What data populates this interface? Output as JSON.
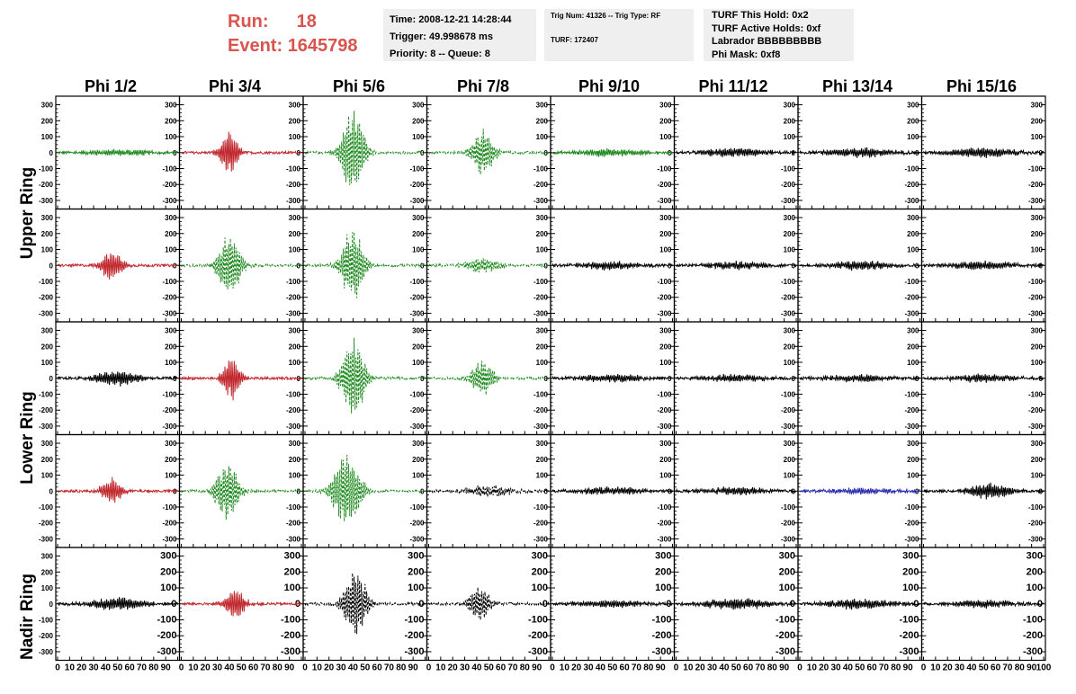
{
  "header": {
    "run_label": "Run:",
    "run_value": "18",
    "event_label": "Event:",
    "event_value": "1645798"
  },
  "info_boxes": {
    "time": "Time: 2008-12-21 14:28:44",
    "trigger": "Trigger: 49.998678 ms",
    "priority": "Priority: 8 -- Queue: 8",
    "trig_num": "Trig Num: 41326 -- Trig Type: RF",
    "turf": "TURF: 172407",
    "turf_hold": "TURF This Hold: 0x2",
    "turf_active": "TURF Active Holds: 0xf",
    "labrador": "Labrador BBBBBBBBB",
    "phi_mask": "Phi Mask: 0xf8"
  },
  "phi_labels": [
    "Phi 1/2",
    "Phi 3/4",
    "Phi 5/6",
    "Phi 7/8",
    "Phi 9/10",
    "Phi 11/12",
    "Phi 13/14",
    "Phi 15/16"
  ],
  "ring_labels": {
    "upper": "Upper Ring",
    "lower": "Lower Ring",
    "nadir": "Nadir Ring"
  },
  "colors": {
    "red": "#c0282d",
    "green": "#1f8a1f",
    "black": "#000000",
    "blue": "#2b2bb0"
  },
  "chart_data": {
    "type": "line",
    "title": "",
    "xlabel": "",
    "ylabel": "",
    "x_range": [
      0,
      100
    ],
    "y_range": [
      -320,
      320
    ],
    "y_ticks": [
      -300,
      -200,
      -100,
      0,
      100,
      200,
      300
    ],
    "x_tick_labels": [
      "0",
      "10",
      "20",
      "30",
      "40",
      "50",
      "60",
      "70",
      "80",
      "90",
      "100"
    ],
    "grid": false,
    "rows": [
      {
        "ring": "upper",
        "panels": [
          {
            "color": "green",
            "style": "solid",
            "peak": 20,
            "center": 50,
            "width": 30
          },
          {
            "color": "red",
            "style": "solid",
            "peak": 150,
            "center": 40,
            "width": 8
          },
          {
            "color": "green",
            "style": "dashed",
            "peak": 300,
            "center": 40,
            "width": 10
          },
          {
            "color": "green",
            "style": "dashed",
            "peak": 150,
            "center": 45,
            "width": 10
          },
          {
            "color": "green",
            "style": "solid",
            "peak": 25,
            "center": 50,
            "width": 30
          },
          {
            "color": "black",
            "style": "solid",
            "peak": 30,
            "center": 50,
            "width": 30
          },
          {
            "color": "black",
            "style": "solid",
            "peak": 30,
            "center": 50,
            "width": 30
          },
          {
            "color": "black",
            "style": "solid",
            "peak": 35,
            "center": 50,
            "width": 30
          }
        ]
      },
      {
        "ring": "upper",
        "panels": [
          {
            "color": "red",
            "style": "solid",
            "peak": 100,
            "center": 45,
            "width": 10
          },
          {
            "color": "green",
            "style": "dashed",
            "peak": 220,
            "center": 40,
            "width": 10
          },
          {
            "color": "green",
            "style": "dashed",
            "peak": 250,
            "center": 40,
            "width": 10
          },
          {
            "color": "green",
            "style": "dashed",
            "peak": 50,
            "center": 45,
            "width": 15
          },
          {
            "color": "black",
            "style": "solid",
            "peak": 25,
            "center": 50,
            "width": 30
          },
          {
            "color": "black",
            "style": "solid",
            "peak": 25,
            "center": 50,
            "width": 30
          },
          {
            "color": "black",
            "style": "solid",
            "peak": 30,
            "center": 50,
            "width": 30
          },
          {
            "color": "black",
            "style": "solid",
            "peak": 30,
            "center": 50,
            "width": 30
          }
        ]
      },
      {
        "ring": "lower",
        "panels": [
          {
            "color": "black",
            "style": "solid",
            "peak": 50,
            "center": 50,
            "width": 20
          },
          {
            "color": "red",
            "style": "solid",
            "peak": 150,
            "center": 42,
            "width": 8
          },
          {
            "color": "green",
            "style": "dashed",
            "peak": 280,
            "center": 40,
            "width": 10
          },
          {
            "color": "green",
            "style": "dashed",
            "peak": 120,
            "center": 45,
            "width": 10
          },
          {
            "color": "black",
            "style": "solid",
            "peak": 25,
            "center": 50,
            "width": 30
          },
          {
            "color": "black",
            "style": "solid",
            "peak": 25,
            "center": 50,
            "width": 30
          },
          {
            "color": "black",
            "style": "solid",
            "peak": 25,
            "center": 50,
            "width": 30
          },
          {
            "color": "black",
            "style": "solid",
            "peak": 25,
            "center": 50,
            "width": 30
          }
        ]
      },
      {
        "ring": "lower",
        "panels": [
          {
            "color": "red",
            "style": "solid",
            "peak": 90,
            "center": 45,
            "width": 9
          },
          {
            "color": "green",
            "style": "dashed",
            "peak": 200,
            "center": 38,
            "width": 10
          },
          {
            "color": "green",
            "style": "dashed",
            "peak": 260,
            "center": 35,
            "width": 12
          },
          {
            "color": "black",
            "style": "dashed",
            "peak": 40,
            "center": 50,
            "width": 20
          },
          {
            "color": "black",
            "style": "solid",
            "peak": 25,
            "center": 50,
            "width": 30
          },
          {
            "color": "black",
            "style": "solid",
            "peak": 25,
            "center": 50,
            "width": 30
          },
          {
            "color": "blue",
            "style": "solid",
            "peak": 20,
            "center": 50,
            "width": 30
          },
          {
            "color": "black",
            "style": "solid",
            "peak": 50,
            "center": 55,
            "width": 20
          }
        ]
      },
      {
        "ring": "nadir",
        "panels": [
          {
            "color": "black",
            "style": "solid",
            "peak": 45,
            "center": 50,
            "width": 25
          },
          {
            "color": "red",
            "style": "solid",
            "peak": 100,
            "center": 45,
            "width": 9
          },
          {
            "color": "black",
            "style": "dashed",
            "peak": 230,
            "center": 42,
            "width": 10
          },
          {
            "color": "black",
            "style": "dashed",
            "peak": 130,
            "center": 42,
            "width": 9
          },
          {
            "color": "black",
            "style": "solid",
            "peak": 25,
            "center": 50,
            "width": 30
          },
          {
            "color": "black",
            "style": "solid",
            "peak": 35,
            "center": 50,
            "width": 30
          },
          {
            "color": "black",
            "style": "solid",
            "peak": 35,
            "center": 50,
            "width": 30
          },
          {
            "color": "black",
            "style": "solid",
            "peak": 25,
            "center": 50,
            "width": 30
          }
        ]
      }
    ]
  }
}
